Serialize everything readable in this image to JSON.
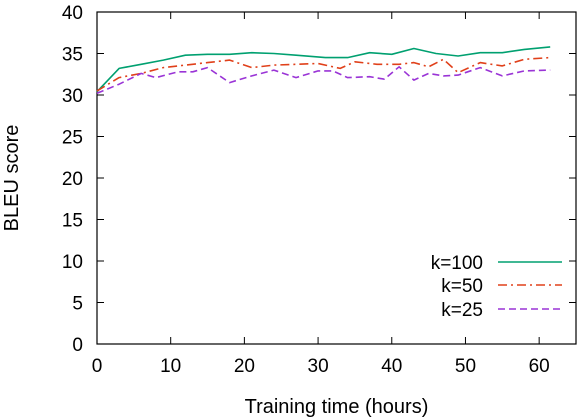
{
  "chart_data": {
    "type": "line",
    "xlabel": "Training time (hours)",
    "ylabel": "BLEU score",
    "xlim": [
      0,
      65
    ],
    "ylim": [
      0,
      40
    ],
    "xticks": [
      0,
      10,
      20,
      30,
      40,
      50,
      60
    ],
    "yticks": [
      0,
      5,
      10,
      15,
      20,
      25,
      30,
      35,
      40
    ],
    "grid": false,
    "legend_position": "right",
    "series": [
      {
        "name": "k=100",
        "color": "#00a070",
        "dash": "solid",
        "x": [
          0,
          3,
          6,
          9,
          12,
          15,
          18,
          21,
          24,
          27,
          31,
          34,
          37,
          40,
          43,
          46,
          49,
          52,
          55,
          58,
          61.5
        ],
        "y": [
          30.4,
          33.2,
          33.7,
          34.2,
          34.8,
          34.9,
          34.9,
          35.1,
          35.0,
          34.8,
          34.5,
          34.5,
          35.1,
          34.9,
          35.6,
          35.0,
          34.7,
          35.1,
          35.1,
          35.5,
          35.8
        ]
      },
      {
        "name": "k=50",
        "color": "#e0401a",
        "dash": "dashdot",
        "x": [
          0,
          3,
          6,
          9,
          12,
          15,
          18,
          21,
          24,
          27,
          30,
          33,
          35,
          38,
          41,
          43,
          45,
          47,
          49,
          52,
          55,
          58,
          61.5
        ],
        "y": [
          30.5,
          32.1,
          32.6,
          33.3,
          33.6,
          33.9,
          34.2,
          33.3,
          33.6,
          33.7,
          33.8,
          33.2,
          34.0,
          33.7,
          33.7,
          33.9,
          33.4,
          34.3,
          32.7,
          33.9,
          33.5,
          34.3,
          34.5
        ]
      },
      {
        "name": "k=25",
        "color": "#9a34d6",
        "dash": "dashed",
        "x": [
          0,
          3,
          6,
          8,
          11,
          13,
          15,
          18,
          21,
          24,
          27,
          30,
          32,
          34,
          37,
          39,
          41,
          43,
          45,
          47,
          49,
          52,
          55,
          58,
          61.5
        ],
        "y": [
          30.2,
          31.3,
          32.6,
          32.1,
          32.8,
          32.8,
          33.3,
          31.5,
          32.3,
          33.0,
          32.1,
          32.9,
          32.9,
          32.1,
          32.2,
          31.9,
          33.4,
          31.8,
          32.6,
          32.3,
          32.4,
          33.3,
          32.3,
          32.9,
          33.0
        ]
      }
    ]
  }
}
